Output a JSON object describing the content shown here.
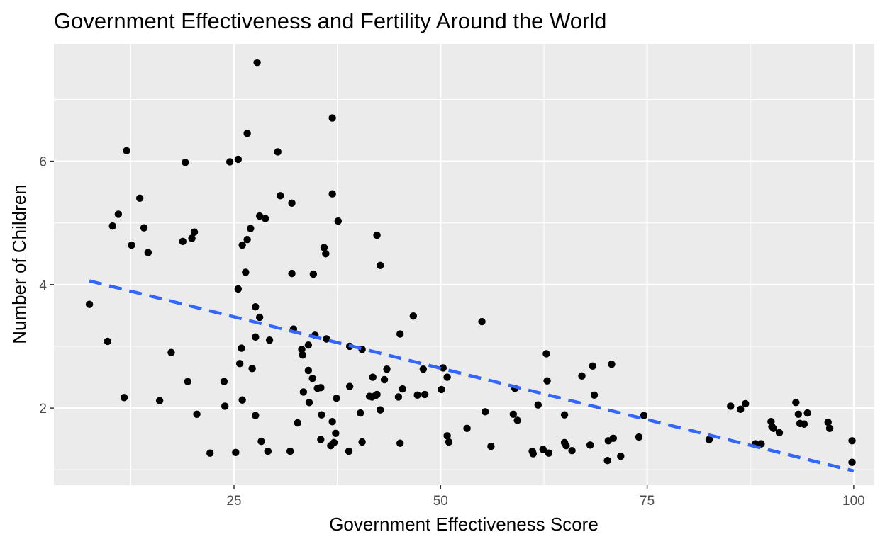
{
  "chart_data": {
    "type": "scatter",
    "title": "Government Effectiveness and Fertility Around the World",
    "xlabel": "Government Effectiveness Score",
    "ylabel": "Number of Children",
    "xlim": [
      3.2,
      102.5
    ],
    "ylim": [
      0.75,
      7.9
    ],
    "x_ticks": [
      25,
      50,
      75,
      100
    ],
    "x_ticklabels": [
      "25",
      "50",
      "75",
      "100"
    ],
    "y_ticks": [
      2,
      4,
      6
    ],
    "y_ticklabels": [
      "2",
      "4",
      "6"
    ],
    "grid": true,
    "legend": "none",
    "trend_line": {
      "x": [
        7.5,
        100
      ],
      "y": [
        4.06,
        0.98
      ],
      "style": "dashed",
      "color": "#3366ff"
    },
    "series": [
      {
        "color": "#000000",
        "points": [
          [
            7.5,
            3.68
          ],
          [
            9.7,
            3.08
          ],
          [
            10.3,
            4.95
          ],
          [
            11.0,
            5.14
          ],
          [
            11.7,
            2.17
          ],
          [
            12.0,
            6.17
          ],
          [
            12.6,
            4.64
          ],
          [
            13.6,
            5.4
          ],
          [
            14.1,
            4.92
          ],
          [
            14.6,
            4.52
          ],
          [
            16.0,
            2.12
          ],
          [
            17.4,
            2.9
          ],
          [
            18.8,
            4.7
          ],
          [
            19.1,
            5.98
          ],
          [
            19.4,
            2.43
          ],
          [
            19.9,
            4.75
          ],
          [
            20.2,
            4.85
          ],
          [
            20.5,
            1.9
          ],
          [
            22.1,
            1.27
          ],
          [
            23.8,
            2.43
          ],
          [
            23.9,
            2.03
          ],
          [
            24.5,
            5.99
          ],
          [
            25.2,
            1.28
          ],
          [
            25.5,
            6.03
          ],
          [
            25.5,
            3.93
          ],
          [
            25.7,
            2.72
          ],
          [
            25.9,
            2.97
          ],
          [
            26.0,
            2.13
          ],
          [
            26.0,
            4.64
          ],
          [
            26.4,
            4.2
          ],
          [
            26.6,
            6.45
          ],
          [
            26.6,
            4.73
          ],
          [
            27.0,
            4.91
          ],
          [
            27.2,
            2.64
          ],
          [
            27.6,
            3.64
          ],
          [
            27.6,
            3.15
          ],
          [
            27.6,
            1.88
          ],
          [
            27.8,
            7.6
          ],
          [
            28.1,
            3.47
          ],
          [
            28.1,
            5.11
          ],
          [
            28.3,
            1.46
          ],
          [
            28.8,
            5.07
          ],
          [
            29.1,
            1.3
          ],
          [
            29.3,
            3.1
          ],
          [
            30.3,
            6.15
          ],
          [
            30.6,
            5.44
          ],
          [
            31.8,
            1.3
          ],
          [
            32.0,
            5.32
          ],
          [
            32.0,
            4.18
          ],
          [
            32.2,
            3.28
          ],
          [
            32.7,
            1.76
          ],
          [
            33.2,
            2.95
          ],
          [
            33.3,
            2.86
          ],
          [
            33.4,
            2.26
          ],
          [
            34.0,
            3.02
          ],
          [
            34.0,
            2.61
          ],
          [
            34.1,
            2.09
          ],
          [
            34.5,
            2.48
          ],
          [
            34.6,
            4.17
          ],
          [
            34.8,
            3.18
          ],
          [
            35.1,
            2.32
          ],
          [
            35.5,
            2.33
          ],
          [
            35.5,
            1.49
          ],
          [
            35.6,
            1.89
          ],
          [
            35.9,
            4.6
          ],
          [
            36.1,
            4.5
          ],
          [
            36.2,
            3.12
          ],
          [
            36.7,
            1.39
          ],
          [
            36.9,
            5.47
          ],
          [
            36.9,
            6.7
          ],
          [
            36.9,
            1.78
          ],
          [
            37.1,
            1.44
          ],
          [
            37.3,
            1.59
          ],
          [
            37.4,
            2.16
          ],
          [
            37.6,
            5.03
          ],
          [
            38.9,
            1.3
          ],
          [
            39.0,
            3.0
          ],
          [
            39.0,
            2.35
          ],
          [
            40.3,
            1.92
          ],
          [
            40.5,
            2.95
          ],
          [
            40.5,
            1.45
          ],
          [
            41.4,
            2.19
          ],
          [
            41.7,
            2.18
          ],
          [
            41.8,
            2.5
          ],
          [
            42.1,
            2.2
          ],
          [
            42.3,
            2.22
          ],
          [
            42.3,
            4.8
          ],
          [
            42.7,
            1.97
          ],
          [
            42.7,
            4.31
          ],
          [
            43.2,
            2.46
          ],
          [
            43.5,
            2.63
          ],
          [
            44.9,
            2.18
          ],
          [
            45.1,
            3.2
          ],
          [
            45.1,
            1.43
          ],
          [
            45.4,
            2.31
          ],
          [
            46.7,
            3.49
          ],
          [
            47.2,
            2.21
          ],
          [
            47.9,
            2.63
          ],
          [
            48.1,
            2.22
          ],
          [
            50.1,
            2.3
          ],
          [
            50.3,
            2.65
          ],
          [
            50.8,
            2.5
          ],
          [
            50.8,
            1.55
          ],
          [
            51.0,
            1.45
          ],
          [
            53.2,
            1.67
          ],
          [
            55.0,
            3.4
          ],
          [
            55.4,
            1.94
          ],
          [
            56.1,
            1.38
          ],
          [
            58.8,
            1.9
          ],
          [
            59.0,
            2.32
          ],
          [
            59.3,
            1.8
          ],
          [
            61.1,
            1.3
          ],
          [
            61.2,
            1.26
          ],
          [
            61.8,
            2.05
          ],
          [
            62.4,
            1.33
          ],
          [
            62.8,
            2.88
          ],
          [
            62.9,
            2.44
          ],
          [
            63.1,
            1.27
          ],
          [
            65.0,
            1.89
          ],
          [
            65.0,
            1.44
          ],
          [
            65.2,
            1.39
          ],
          [
            65.9,
            1.31
          ],
          [
            67.1,
            2.52
          ],
          [
            68.1,
            1.4
          ],
          [
            68.4,
            2.68
          ],
          [
            68.6,
            2.21
          ],
          [
            70.2,
            1.15
          ],
          [
            70.3,
            1.47
          ],
          [
            70.7,
            2.71
          ],
          [
            70.9,
            1.51
          ],
          [
            71.8,
            1.22
          ],
          [
            74.0,
            1.53
          ],
          [
            74.6,
            1.88
          ],
          [
            82.5,
            1.49
          ],
          [
            85.1,
            2.03
          ],
          [
            86.3,
            1.98
          ],
          [
            86.9,
            2.07
          ],
          [
            88.1,
            1.42
          ],
          [
            88.8,
            1.42
          ],
          [
            90.0,
            1.78
          ],
          [
            90.1,
            1.7
          ],
          [
            90.3,
            1.67
          ],
          [
            91.0,
            1.6
          ],
          [
            93.0,
            2.09
          ],
          [
            93.3,
            1.9
          ],
          [
            93.5,
            1.75
          ],
          [
            94.0,
            1.74
          ],
          [
            94.4,
            1.92
          ],
          [
            96.9,
            1.77
          ],
          [
            97.1,
            1.67
          ],
          [
            99.8,
            1.47
          ],
          [
            99.8,
            1.12
          ]
        ]
      }
    ]
  }
}
